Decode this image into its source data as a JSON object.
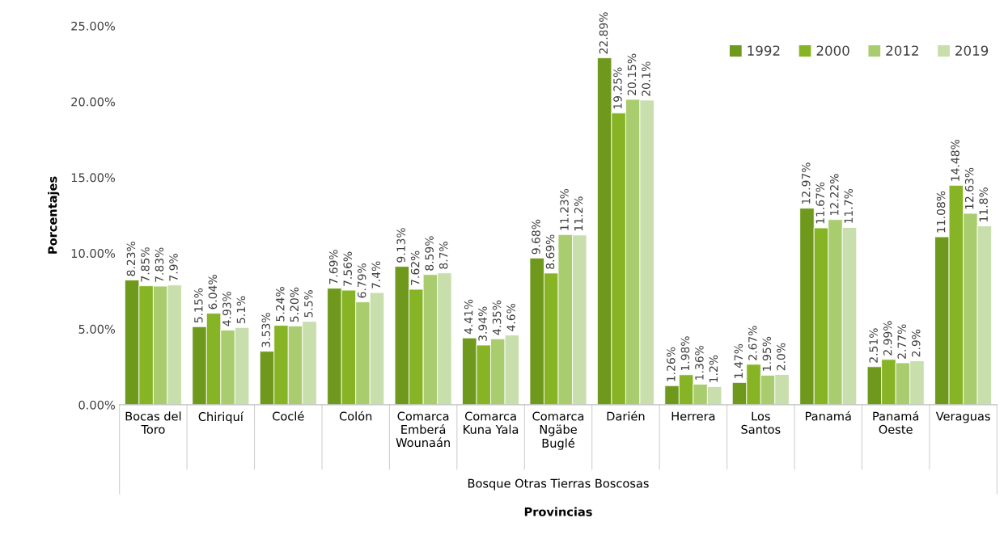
{
  "chart_data": {
    "type": "bar",
    "xlabel": "Provincias",
    "ylabel": "Porcentajes",
    "categories": [
      "Bocas del\nToro",
      "Chiriquí",
      "Coclé",
      "Colón",
      "Comarca\nEmberá\nWounaán",
      "Comarca\nKuna Yala",
      "Comarca\nNgäbe\nBuglé",
      "Darién",
      "Herrera",
      "Los\nSantos",
      "Panamá",
      "Panamá\nOeste",
      "Veraguas"
    ],
    "series": [
      {
        "name": "1992",
        "color": "#6f991c",
        "values": [
          8.23,
          5.15,
          3.53,
          7.69,
          9.13,
          4.41,
          9.68,
          22.89,
          1.26,
          1.47,
          12.97,
          2.51,
          11.08
        ],
        "value_labels": [
          "8.23%",
          "5.15%",
          "3.53%",
          "7.69%",
          "9.13%",
          "4.41%",
          "9.68%",
          "22.89%",
          "1.26%",
          "1.47%",
          "12.97%",
          "2.51%",
          "11.08%"
        ]
      },
      {
        "name": "2000",
        "color": "#86b424",
        "values": [
          7.85,
          6.04,
          5.24,
          7.56,
          7.62,
          3.94,
          8.69,
          19.25,
          1.98,
          2.67,
          11.67,
          2.99,
          14.48
        ],
        "value_labels": [
          "7.85%",
          "6.04%",
          "5.24%",
          "7.56%",
          "7.62%",
          "3.94%",
          "8.69%",
          "19.25%",
          "1.98%",
          "2.67%",
          "11.67%",
          "2.99%",
          "14.48%"
        ]
      },
      {
        "name": "2012",
        "color": "#a9cd6e",
        "values": [
          7.83,
          4.93,
          5.2,
          6.79,
          8.59,
          4.35,
          11.23,
          20.15,
          1.36,
          1.95,
          12.22,
          2.77,
          12.63
        ],
        "value_labels": [
          "7.83%",
          "4.93%",
          "5.20%",
          "6.79%",
          "8.59%",
          "4.35%",
          "11.23%",
          "20.15%",
          "1.36%",
          "1.95%",
          "12.22%",
          "2.77%",
          "12.63%"
        ]
      },
      {
        "name": "2019",
        "color": "#c8dfad",
        "values": [
          7.9,
          5.1,
          5.5,
          7.4,
          8.7,
          4.6,
          11.2,
          20.1,
          1.2,
          2.0,
          11.7,
          2.9,
          11.8
        ],
        "value_labels": [
          "7.9%",
          "5.1%",
          "5.5%",
          "7.4%",
          "8.7%",
          "4.6%",
          "11.2%",
          "20.1%",
          "1.2%",
          "2.0%",
          "11.7%",
          "2.9%",
          "11.8%"
        ]
      }
    ],
    "ylim": [
      0,
      25
    ],
    "yticks": [
      {
        "value": 0,
        "label": "0.00%"
      },
      {
        "value": 5,
        "label": "5.00%"
      },
      {
        "value": 10,
        "label": "10.00%"
      },
      {
        "value": 15,
        "label": "15.00%"
      },
      {
        "value": 20,
        "label": "20.00%"
      },
      {
        "value": 25,
        "label": "25.00%"
      }
    ],
    "annotations": [
      "Bosque Otras Tierras Boscosas"
    ],
    "legend": "top right",
    "grid": false
  }
}
